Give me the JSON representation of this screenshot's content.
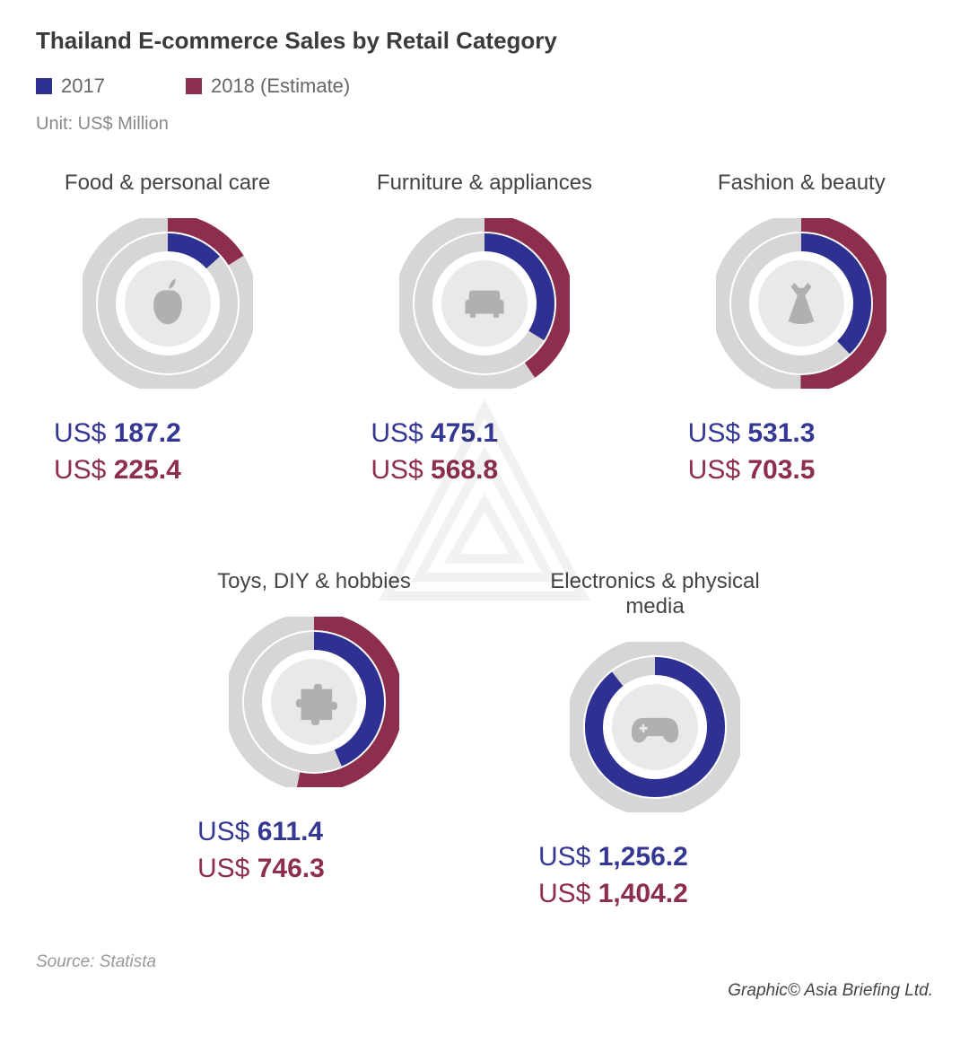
{
  "title": "Thailand E-commerce Sales by Retail Category",
  "legend": {
    "y2017": {
      "label": "2017",
      "color": "#2e3191"
    },
    "y2018": {
      "label": "2018 (Estimate)",
      "color": "#8d2e4d"
    }
  },
  "unit": "Unit: US$ Million",
  "colors": {
    "ring_bg": "#d6d6d6",
    "inner": "#e9e9e9",
    "icon": "#b0b0b0",
    "c2017": "#2e3191",
    "c2018": "#8d2e4d",
    "text2017": "#353893",
    "text2018": "#8d2e4d"
  },
  "ring": {
    "size": 190,
    "outer_r": 90,
    "outer_stroke": 20,
    "inner_r": 68,
    "inner_stroke": 20,
    "icon_circle_r": 48,
    "start_angle": -90,
    "max_value": 1404.2
  },
  "currency_prefix": "US$ ",
  "categories": [
    {
      "name": "Food & personal care",
      "icon": "apple",
      "v2017": 187.2,
      "v2018": 225.4,
      "v2017_label": "187.2",
      "v2018_label": "225.4"
    },
    {
      "name": "Furniture & appliances",
      "icon": "sofa",
      "v2017": 475.1,
      "v2018": 568.8,
      "v2017_label": "475.1",
      "v2018_label": "568.8"
    },
    {
      "name": "Fashion & beauty",
      "icon": "dress",
      "v2017": 531.3,
      "v2018": 703.5,
      "v2017_label": "531.3",
      "v2018_label": "703.5"
    },
    {
      "name": "Toys, DIY & hobbies",
      "icon": "puzzle",
      "v2017": 611.4,
      "v2018": 746.3,
      "v2017_label": "611.4",
      "v2018_label": "746.3"
    },
    {
      "name": "Electronics & physical media",
      "icon": "gamepad",
      "v2017": 1256.2,
      "v2018": 1404.2,
      "v2017_label": "1,256.2",
      "v2018_label": "1,404.2"
    }
  ],
  "source": "Source: Statista",
  "credit": "Graphic© Asia Briefing Ltd."
}
